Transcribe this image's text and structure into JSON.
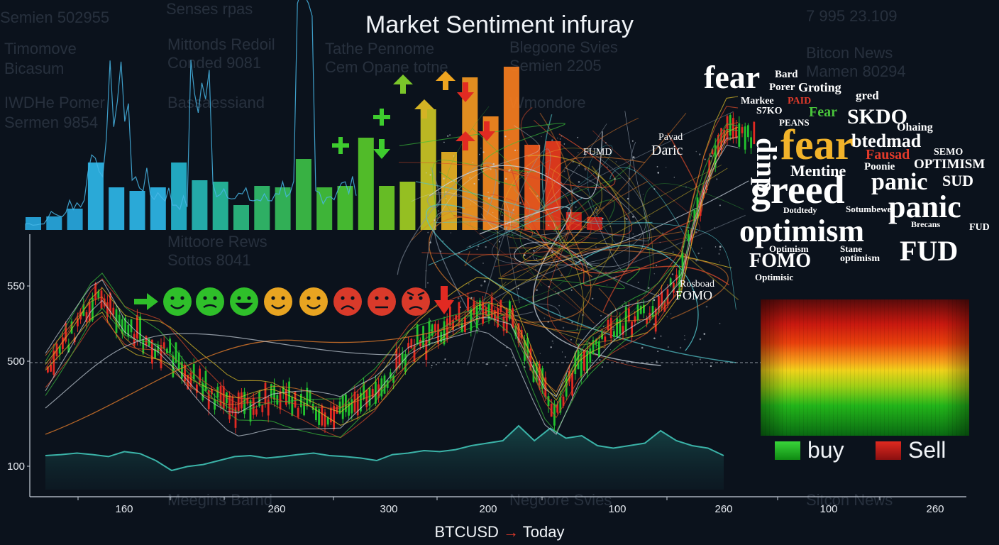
{
  "title": "Market Sentiment infuray",
  "background_text": [
    "Semien 502955",
    "Senses rpas",
    "Timomove",
    "Mittonds Redoil",
    "Tathe Pennome",
    "Blegoone Svies",
    "Bitcon News",
    "Bicasum",
    "Conded 9081",
    "Cem Opane totne",
    "Semien 2205",
    "Mamen 80294",
    "IWDHe Pomer",
    "Bassaessiand",
    "Wmondore",
    "Sermen 9854",
    "Mittoore Rews",
    "Sottos 8041",
    "Meegins Barnd",
    "Negoore Svies",
    "Sitcon News",
    "7 995 23.109"
  ],
  "icons": {
    "sentiment_faces": [
      "arrow-right-icon",
      "smile-icon",
      "grimace-icon",
      "grin-icon",
      "smile-icon",
      "smile-icon",
      "frown-icon",
      "neutral-face-icon",
      "angry-face-icon",
      "arrow-down-icon"
    ],
    "arrows": [
      "plus-icon",
      "plus-icon",
      "arrow-down-icon",
      "arrow-up-icon",
      "arrow-up-icon",
      "arrow-up-icon",
      "arrow-down-icon",
      "arrow-up-icon",
      "arrow-down-icon"
    ]
  },
  "colors": {
    "buy": "#18c21a",
    "sell": "#c8180f",
    "candle_up": "#22c32e",
    "candle_down": "#e22a22",
    "volume_line": "#3bb3a8",
    "word_accent_yellow": "#f2b32a",
    "word_accent_red": "#e23a2a",
    "word_accent_green": "#49c43a"
  },
  "word_cloud": [
    {
      "text": "fear",
      "size": 46,
      "color": "#ffffff"
    },
    {
      "text": "Bard",
      "size": 15,
      "color": "#ffffff"
    },
    {
      "text": "Porer",
      "size": 15,
      "color": "#ffffff"
    },
    {
      "text": "Groting",
      "size": 18,
      "color": "#ffffff"
    },
    {
      "text": "gred",
      "size": 17,
      "color": "#ffffff"
    },
    {
      "text": "Markee",
      "size": 14,
      "color": "#ffffff"
    },
    {
      "text": "PAID",
      "size": 14,
      "color": "#e23a2a"
    },
    {
      "text": "S7KO",
      "size": 14,
      "color": "#ffffff"
    },
    {
      "text": "Fear",
      "size": 20,
      "color": "#49c43a"
    },
    {
      "text": "SKDO",
      "size": 30,
      "color": "#ffffff"
    },
    {
      "text": "PEANS",
      "size": 13,
      "color": "#ffffff"
    },
    {
      "text": "Ohaing",
      "size": 16,
      "color": "#ffffff"
    },
    {
      "text": "dinp",
      "size": 40,
      "color": "#ffffff"
    },
    {
      "text": "fear",
      "size": 60,
      "color": "#f2b32a"
    },
    {
      "text": "btedmad",
      "size": 26,
      "color": "#ffffff"
    },
    {
      "text": "Fausad",
      "size": 20,
      "color": "#e23a2a"
    },
    {
      "text": "SEMO",
      "size": 14,
      "color": "#ffffff"
    },
    {
      "text": "Mentine",
      "size": 22,
      "color": "#ffffff"
    },
    {
      "text": "Poonie",
      "size": 15,
      "color": "#ffffff"
    },
    {
      "text": "OPTIMISM",
      "size": 19,
      "color": "#ffffff"
    },
    {
      "text": "greed",
      "size": 56,
      "color": "#ffffff"
    },
    {
      "text": "panic",
      "size": 34,
      "color": "#ffffff"
    },
    {
      "text": "SUD",
      "size": 22,
      "color": "#ffffff"
    },
    {
      "text": "Dotdtedy",
      "size": 12,
      "color": "#ffffff"
    },
    {
      "text": "Sotumbewe",
      "size": 13,
      "color": "#ffffff"
    },
    {
      "text": "panic",
      "size": 44,
      "color": "#ffffff"
    },
    {
      "text": "optimism",
      "size": 44,
      "color": "#ffffff"
    },
    {
      "text": "Brecans",
      "size": 12,
      "color": "#ffffff"
    },
    {
      "text": "FUD",
      "size": 14,
      "color": "#ffffff"
    },
    {
      "text": "Optimism",
      "size": 13,
      "color": "#ffffff"
    },
    {
      "text": "Stane",
      "size": 13,
      "color": "#ffffff"
    },
    {
      "text": "optimism",
      "size": 14,
      "color": "#ffffff"
    },
    {
      "text": "FUD",
      "size": 40,
      "color": "#ffffff"
    },
    {
      "text": "FOMO",
      "size": 28,
      "color": "#ffffff"
    },
    {
      "text": "Optimisic",
      "size": 13,
      "color": "#ffffff"
    }
  ],
  "scatter_labels": [
    "FUMD",
    "Pavad",
    "Daric",
    "Rosboad",
    "FOMO"
  ],
  "legend": {
    "buy": "buy",
    "sell": "Sell"
  },
  "chart_data": [
    {
      "type": "bar",
      "name": "sentiment-bars",
      "values": [
        18,
        19,
        30,
        95,
        60,
        55,
        60,
        95,
        70,
        68,
        35,
        62,
        60,
        100,
        60,
        62,
        130,
        62,
        68,
        170,
        110,
        215,
        160,
        230,
        120,
        125,
        25,
        18
      ],
      "colors": [
        "#27a3d8",
        "#27a3d8",
        "#27a3d8",
        "#2cb2e2",
        "#2cb2e2",
        "#2cb2e2",
        "#2cb2e2",
        "#24b0c8",
        "#26b3b0",
        "#26b79a",
        "#2bb67e",
        "#30b868",
        "#34b85a",
        "#3bbb46",
        "#41be3a",
        "#49c232",
        "#55c52a",
        "#6cc626",
        "#9dc923",
        "#c5c124",
        "#e1ad23",
        "#ed9521",
        "#f08720",
        "#f07a1f",
        "#ec5a1d",
        "#e43a1c",
        "#d6241b",
        "#c8201a"
      ],
      "spike_line": [
        10,
        25,
        45,
        120,
        220,
        80,
        60,
        45,
        230,
        70,
        55,
        50,
        70,
        310,
        60,
        70,
        80
      ]
    },
    {
      "type": "line",
      "name": "price-candles",
      "yticks": [
        "550",
        "500",
        "100"
      ],
      "xticks": [
        "160",
        "260",
        "300",
        "200",
        "100",
        "260",
        "100",
        "260"
      ],
      "ref_line": "500",
      "volume_area": [
        40,
        42,
        45,
        42,
        38,
        48,
        44,
        30,
        10,
        18,
        22,
        30,
        38,
        40,
        35,
        38,
        42,
        45,
        40,
        38,
        35,
        30,
        42,
        45,
        50,
        48,
        52,
        60,
        65,
        70,
        100,
        70,
        95,
        75,
        80,
        60,
        55,
        60,
        65,
        90,
        70,
        60,
        55,
        40
      ]
    }
  ],
  "axis_label": {
    "left": "BTCUSD",
    "arrow": "→",
    "right": "Today"
  }
}
